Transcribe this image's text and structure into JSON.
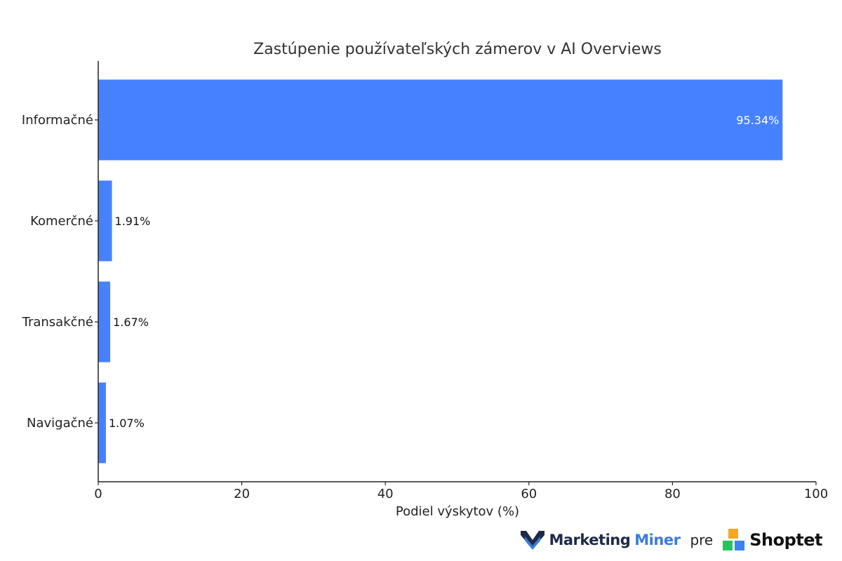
{
  "chart_data": {
    "type": "bar",
    "orientation": "horizontal",
    "title": "Zastúpenie používateľských zámerov v AI Overviews",
    "xlabel": "Podiel výskytov (%)",
    "ylabel": "",
    "xlim": [
      0,
      100
    ],
    "x_ticks": [
      0,
      20,
      40,
      60,
      80,
      100
    ],
    "categories": [
      "Informačné",
      "Komerčné",
      "Transakčné",
      "Navigačné"
    ],
    "values": [
      95.34,
      1.91,
      1.67,
      1.07
    ],
    "value_labels": [
      "95.34%",
      "1.91%",
      "1.67%",
      "1.07%"
    ],
    "bar_color": "#4682ff",
    "grid": false,
    "legend": "none"
  },
  "footer": {
    "brand1_part1": "Marketing",
    "brand1_part2": "Miner",
    "connector": "pre",
    "brand2": "Shoptet",
    "brand1_icon": "marketing-miner-icon",
    "brand2_icon": "shoptet-icon",
    "brand1_color": "#1e2a4a",
    "brand1_accent": "#3b7dd8",
    "shoptet_colors": [
      "#f5a623",
      "#22c55e",
      "#3b82f6"
    ]
  }
}
